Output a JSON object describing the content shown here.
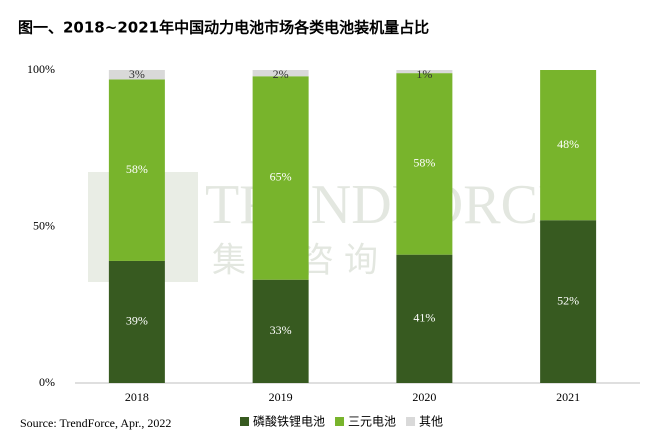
{
  "chart_data": {
    "type": "stacked-bar",
    "title": "图一、2018~2021年中国动力电池市场各类电池装机量占比",
    "source": "Source: TrendForce, Apr., 2022",
    "watermark": [
      "TRENDFORCE",
      "集邦咨询"
    ],
    "categories": [
      "2018",
      "2019",
      "2020",
      "2021"
    ],
    "series": [
      {
        "name": "磷酸铁锂电池",
        "color": "#375a20",
        "values": [
          39,
          33,
          41,
          52
        ],
        "value_labels": [
          "39%",
          "33%",
          "41%",
          "52%"
        ]
      },
      {
        "name": "三元电池",
        "color": "#78b42c",
        "values": [
          58,
          65,
          58,
          48
        ],
        "value_labels": [
          "58%",
          "65%",
          "58%",
          "48%"
        ]
      },
      {
        "name": "其他",
        "color": "#d9d9d9",
        "values": [
          3,
          2,
          1,
          0
        ],
        "value_labels": [
          "3%",
          "2%",
          "1%",
          null
        ]
      }
    ],
    "ylim": [
      0,
      100
    ],
    "yticks": [
      {
        "value": 0,
        "label": "0%"
      },
      {
        "value": 50,
        "label": "50%"
      },
      {
        "value": 100,
        "label": "100%"
      }
    ],
    "legend": "bottom"
  }
}
